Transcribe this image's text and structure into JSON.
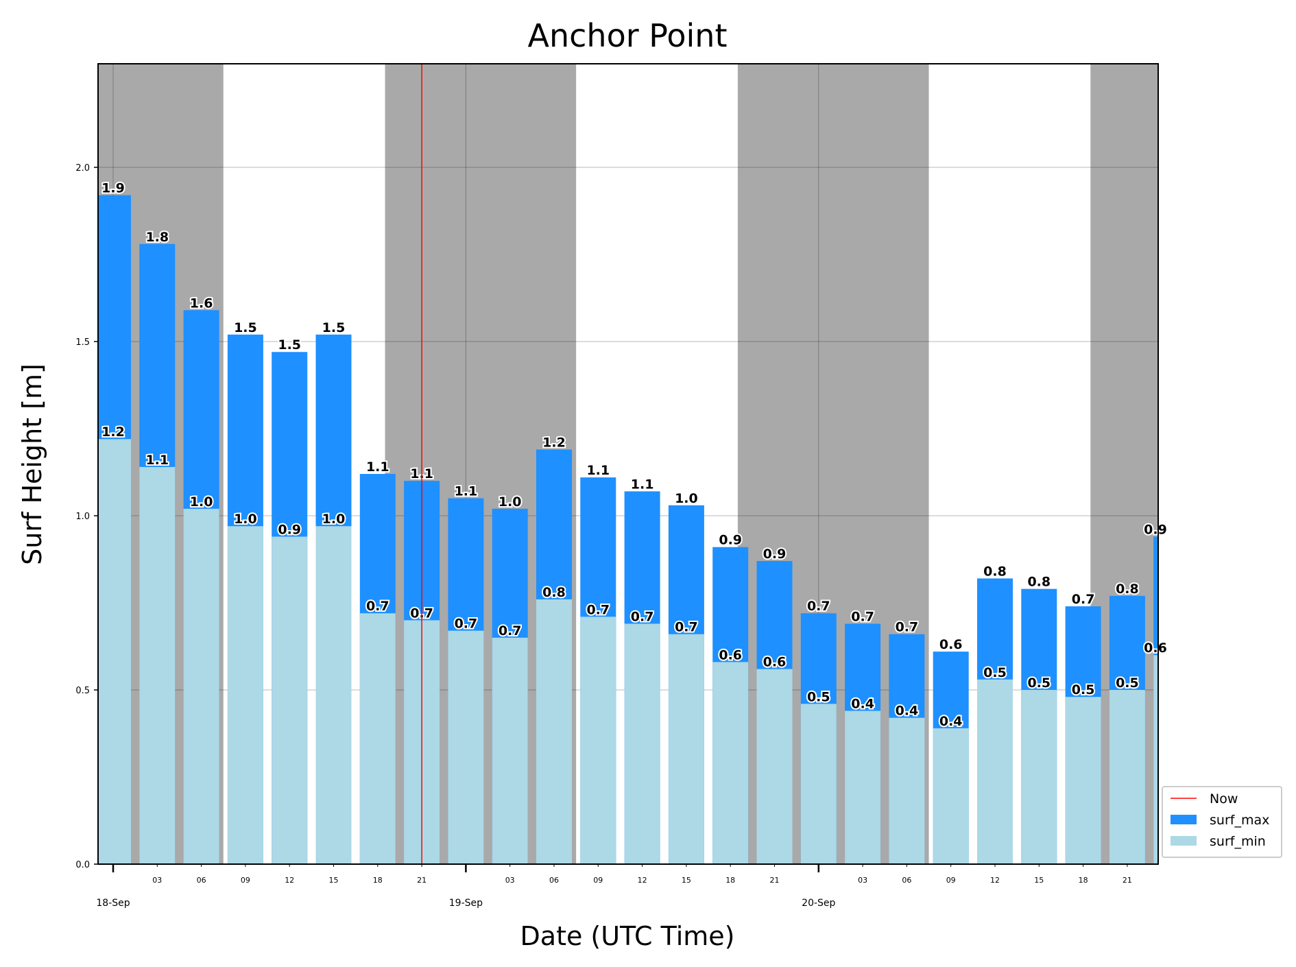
{
  "chart_data": {
    "type": "bar",
    "title": "Anchor Point",
    "xlabel": "Date (UTC Time)",
    "ylabel": "Surf Height [m]",
    "ylim": [
      0,
      2.3
    ],
    "yticks": [
      "0.0",
      "0.5",
      "1.0",
      "1.5",
      "2.0"
    ],
    "now": "2023-09-18T21:00",
    "x": [
      "2023-09-18T00:00",
      "2023-09-18T03:00",
      "2023-09-18T06:00",
      "2023-09-18T09:00",
      "2023-09-18T12:00",
      "2023-09-18T15:00",
      "2023-09-18T18:00",
      "2023-09-18T21:00",
      "2023-09-19T00:00",
      "2023-09-19T03:00",
      "2023-09-19T06:00",
      "2023-09-19T09:00",
      "2023-09-19T12:00",
      "2023-09-19T15:00",
      "2023-09-19T18:00",
      "2023-09-19T21:00",
      "2023-09-20T00:00",
      "2023-09-20T03:00",
      "2023-09-20T06:00",
      "2023-09-20T09:00",
      "2023-09-20T12:00",
      "2023-09-20T15:00",
      "2023-09-20T18:00",
      "2023-09-20T21:00",
      "2023-09-21T00:00"
    ],
    "hour_ticks": [
      "03",
      "06",
      "09",
      "12",
      "15",
      "18",
      "21",
      "03",
      "06",
      "09",
      "12",
      "15",
      "18",
      "21",
      "03",
      "06",
      "09",
      "12",
      "15",
      "18",
      "21"
    ],
    "date_ticks": [
      "18-Sep",
      "19-Sep",
      "20-Sep"
    ],
    "night_periods": [
      [
        "2023-09-17T23:00",
        "2023-09-18T07:30"
      ],
      [
        "2023-09-18T18:30",
        "2023-09-19T07:30"
      ],
      [
        "2023-09-19T18:30",
        "2023-09-20T07:30"
      ],
      [
        "2023-09-20T18:30",
        "2023-09-21T01:00"
      ]
    ],
    "series": [
      {
        "name": "surf_max",
        "color": "#1e90ff",
        "values": [
          1.92,
          1.78,
          1.59,
          1.52,
          1.47,
          1.52,
          1.12,
          1.1,
          1.05,
          1.02,
          1.19,
          1.11,
          1.07,
          1.03,
          0.91,
          0.87,
          0.72,
          0.69,
          0.66,
          0.61,
          0.82,
          0.79,
          0.74,
          0.77,
          0.94
        ],
        "labels": [
          "1.9",
          "1.8",
          "1.6",
          "1.5",
          "1.5",
          "1.5",
          "1.1",
          "1.1",
          "1.1",
          "1.0",
          "1.2",
          "1.1",
          "1.1",
          "1.0",
          "0.9",
          "0.9",
          "0.7",
          "0.7",
          "0.7",
          "0.6",
          "0.8",
          "0.8",
          "0.7",
          "0.8",
          "0.9"
        ]
      },
      {
        "name": "surf_min",
        "color": "#add8e6",
        "values": [
          1.22,
          1.14,
          1.02,
          0.97,
          0.94,
          0.97,
          0.72,
          0.7,
          0.67,
          0.65,
          0.76,
          0.71,
          0.69,
          0.66,
          0.58,
          0.56,
          0.46,
          0.44,
          0.42,
          0.39,
          0.53,
          0.5,
          0.48,
          0.5,
          0.6
        ],
        "labels": [
          "1.2",
          "1.1",
          "1.0",
          "1.0",
          "0.9",
          "1.0",
          "0.7",
          "0.7",
          "0.7",
          "0.7",
          "0.8",
          "0.7",
          "0.7",
          "0.7",
          "0.6",
          "0.6",
          "0.5",
          "0.4",
          "0.4",
          "0.4",
          "0.5",
          "0.5",
          "0.5",
          "0.5",
          "0.6"
        ]
      }
    ],
    "legend": {
      "position": "lower-right-outside",
      "entries": [
        "Now",
        "surf_max",
        "surf_min"
      ],
      "now_color": "#ff0000"
    },
    "background": {
      "night_color": "#a9a9a9"
    },
    "grid": true
  }
}
